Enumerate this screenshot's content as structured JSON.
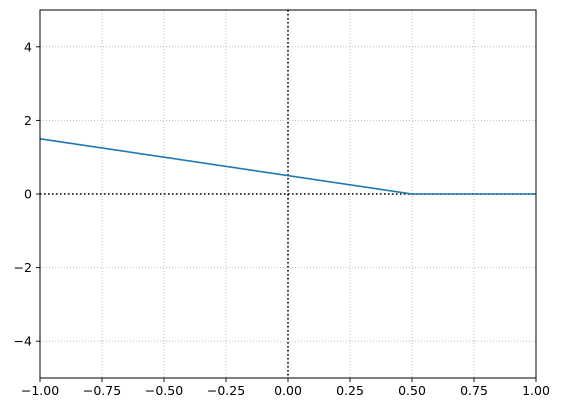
{
  "chart_data": {
    "type": "line",
    "title": "",
    "xlabel": "",
    "ylabel": "",
    "xlim": [
      -1.0,
      1.0
    ],
    "ylim": [
      -5,
      5
    ],
    "x_ticks": [
      -1.0,
      -0.75,
      -0.5,
      -0.25,
      0.0,
      0.25,
      0.5,
      0.75,
      1.0
    ],
    "x_tick_labels": [
      "−1.00",
      "−0.75",
      "−0.50",
      "−0.25",
      "0.00",
      "0.25",
      "0.50",
      "0.75",
      "1.00"
    ],
    "y_ticks": [
      -4,
      -2,
      0,
      2,
      4
    ],
    "y_tick_labels": [
      "−4",
      "−2",
      "0",
      "2",
      "4"
    ],
    "grid": true,
    "grid_style": "dotted",
    "reference_lines": {
      "x": 0,
      "y": 0,
      "style": "dotted",
      "color": "#000000"
    },
    "series": [
      {
        "color": "#1f77b4",
        "x": [
          -1.0,
          0.5,
          1.0
        ],
        "y": [
          1.5,
          0.0,
          0.0
        ]
      }
    ]
  }
}
